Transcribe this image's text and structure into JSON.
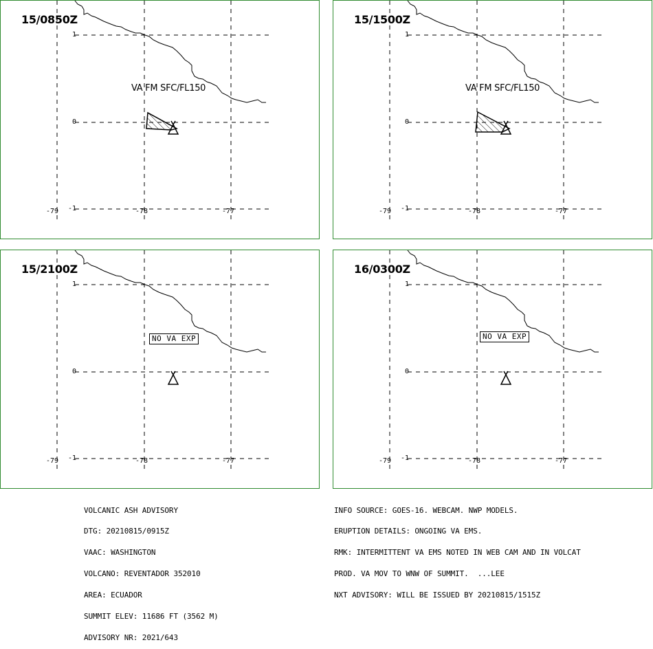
{
  "panels": [
    {
      "time": "15/0850Z",
      "label": "VA FM SFC/FL150",
      "no_va": "",
      "ash": true
    },
    {
      "time": "15/1500Z",
      "label": "VA FM SFC/FL150",
      "no_va": "",
      "ash": true
    },
    {
      "time": "15/2100Z",
      "label": "",
      "no_va": "NO VA EXP",
      "ash": false
    },
    {
      "time": "16/0300Z",
      "label": "",
      "no_va": "NO VA EXP",
      "ash": false
    }
  ],
  "axes": {
    "lat_labels": [
      "1",
      "0",
      "-1"
    ],
    "lon_labels": [
      "-79",
      "-78",
      "-77"
    ]
  },
  "advisory_left": [
    "VOLCANIC ASH ADVISORY",
    "DTG: 20210815/0915Z",
    "VAAC: WASHINGTON",
    "VOLCANO: REVENTADOR 352010",
    "AREA: ECUADOR",
    "SUMMIT ELEV: 11686 FT (3562 M)",
    "ADVISORY NR: 2021/643"
  ],
  "advisory_right": [
    "INFO SOURCE: GOES-16. WEBCAM. NWP MODELS.",
    "ERUPTION DETAILS: ONGOING VA EMS.",
    "RMK: INTERMITTENT VA EMS NOTED IN WEB CAM AND IN VOLCAT",
    "PROD. VA MOV TO WNW OF SUMMIT.  ...LEE",
    "NXT ADVISORY: WILL BE ISSUED BY 20210815/1515Z"
  ],
  "colors": {
    "panel_border": "#2e8b2e",
    "lines": "#000000"
  },
  "icons": {
    "volcano": "volcano-icon"
  }
}
